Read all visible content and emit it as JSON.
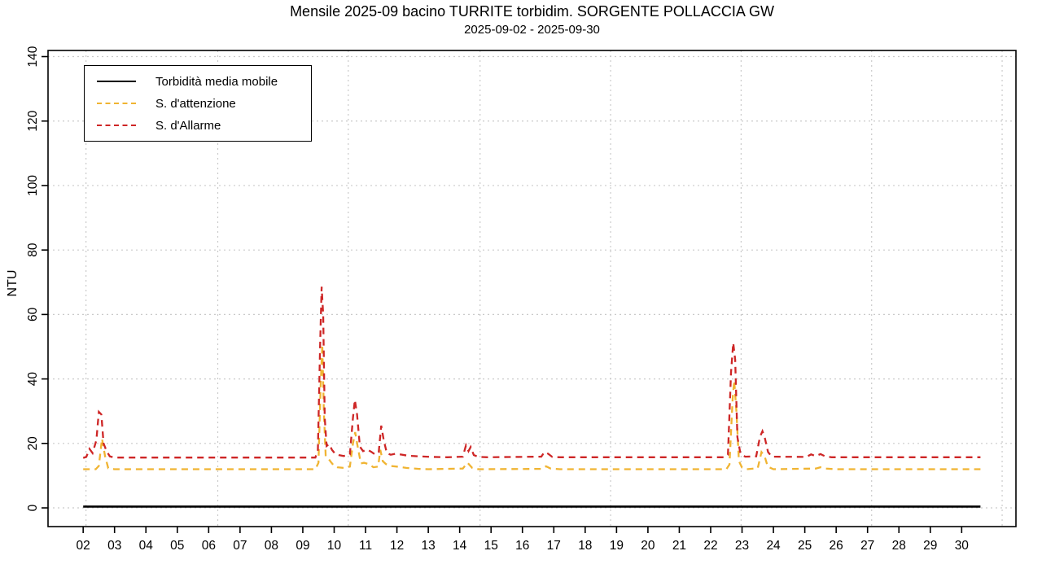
{
  "title": "Mensile 2025-09 bacino TURRITE torbidim. SORGENTE POLLACCIA GW",
  "subtitle": "2025-09-02 - 2025-09-30",
  "ylabel": "NTU",
  "colors": {
    "media_mobile": "#000000",
    "attenzione": "#F0B432",
    "allarme": "#CE2626",
    "grid": "#CACACA",
    "axis": "#000000"
  },
  "legend": {
    "items": [
      {
        "label": "Torbidità media mobile",
        "style": "solid",
        "color": "#000000"
      },
      {
        "label": "S. d'attenzione",
        "style": "dashed",
        "color": "#F0B432"
      },
      {
        "label": "S. d'Allarme",
        "style": "dashed",
        "color": "#CE2626"
      }
    ]
  },
  "chart_data": {
    "type": "line",
    "title": "Mensile 2025-09 bacino TURRITE torbidim. SORGENTE POLLACCIA GW",
    "subtitle": "2025-09-02 - 2025-09-30",
    "xlabel": "",
    "ylabel": "NTU",
    "x_unit": "day of September 2025",
    "xlim": [
      0.88,
      31.73
    ],
    "ylim": [
      -5.8,
      141.9
    ],
    "y_ticks": [
      0,
      20,
      40,
      60,
      80,
      100,
      120,
      140
    ],
    "x_tick_days": [
      2,
      3,
      4,
      5,
      6,
      7,
      8,
      9,
      10,
      11,
      12,
      13,
      14,
      15,
      16,
      17,
      18,
      19,
      20,
      21,
      22,
      23,
      24,
      25,
      26,
      27,
      28,
      29,
      30
    ],
    "x_ticks": [
      "02",
      "03",
      "04",
      "05",
      "06",
      "07",
      "08",
      "09",
      "10",
      "11",
      "12",
      "13",
      "14",
      "15",
      "16",
      "17",
      "18",
      "19",
      "20",
      "21",
      "22",
      "23",
      "24",
      "25",
      "26",
      "27",
      "28",
      "29",
      "30"
    ],
    "grid": {
      "on": true,
      "h_at": [
        0,
        20,
        40,
        60,
        80,
        100,
        120,
        140
      ],
      "v_at_days": [
        2.09,
        6.29,
        10.45,
        14.65,
        18.81,
        22.97,
        27.13,
        31.29
      ]
    },
    "legend_position": "top-left",
    "series": [
      {
        "name": "Torbidità media mobile",
        "color": "#000000",
        "style": "solid",
        "width": 2.6,
        "points": [
          [
            2.0,
            0.4
          ],
          [
            30.6,
            0.4
          ]
        ]
      },
      {
        "name": "S. d'attenzione",
        "color": "#F0B432",
        "style": "dashed",
        "width": 2.3,
        "points": [
          [
            2.0,
            12
          ],
          [
            2.4,
            12
          ],
          [
            2.5,
            13
          ],
          [
            2.6,
            21.5
          ],
          [
            2.7,
            16
          ],
          [
            2.8,
            12.3
          ],
          [
            3.0,
            12
          ],
          [
            9.4,
            12
          ],
          [
            9.5,
            14
          ],
          [
            9.57,
            38
          ],
          [
            9.62,
            50.7
          ],
          [
            9.67,
            30
          ],
          [
            9.73,
            16
          ],
          [
            9.8,
            15.5
          ],
          [
            9.9,
            14.2
          ],
          [
            10.0,
            13
          ],
          [
            10.1,
            12.6
          ],
          [
            10.3,
            12.4
          ],
          [
            10.5,
            12.8
          ],
          [
            10.6,
            20
          ],
          [
            10.67,
            23.5
          ],
          [
            10.75,
            19
          ],
          [
            10.85,
            13.8
          ],
          [
            10.95,
            14
          ],
          [
            11.1,
            13.6
          ],
          [
            11.25,
            12.6
          ],
          [
            11.4,
            12.8
          ],
          [
            11.47,
            18
          ],
          [
            11.55,
            14.5
          ],
          [
            11.65,
            13.6
          ],
          [
            11.8,
            13
          ],
          [
            12.0,
            12.8
          ],
          [
            12.3,
            12.4
          ],
          [
            12.7,
            12.1
          ],
          [
            13.0,
            12
          ],
          [
            14.1,
            12.2
          ],
          [
            14.25,
            14
          ],
          [
            14.4,
            12.4
          ],
          [
            14.6,
            12
          ],
          [
            16.6,
            12.1
          ],
          [
            16.75,
            12.9
          ],
          [
            16.9,
            12.2
          ],
          [
            17.2,
            12
          ],
          [
            22.5,
            12
          ],
          [
            22.6,
            13.5
          ],
          [
            22.7,
            34
          ],
          [
            22.75,
            39.5
          ],
          [
            22.82,
            30
          ],
          [
            22.9,
            14.5
          ],
          [
            23.0,
            12.5
          ],
          [
            23.15,
            12
          ],
          [
            23.5,
            12.3
          ],
          [
            23.62,
            17.3
          ],
          [
            23.72,
            16
          ],
          [
            23.82,
            12.8
          ],
          [
            24.0,
            12
          ],
          [
            25.35,
            12.2
          ],
          [
            25.5,
            12.6
          ],
          [
            25.65,
            12.2
          ],
          [
            26.0,
            12
          ],
          [
            30.6,
            12
          ]
        ]
      },
      {
        "name": "S. d'Allarme",
        "color": "#CE2626",
        "style": "dashed",
        "width": 2.3,
        "points": [
          [
            2.0,
            15.5
          ],
          [
            2.1,
            15.8
          ],
          [
            2.2,
            18.3
          ],
          [
            2.3,
            17
          ],
          [
            2.42,
            21
          ],
          [
            2.5,
            29.8
          ],
          [
            2.58,
            29
          ],
          [
            2.65,
            20
          ],
          [
            2.75,
            17.5
          ],
          [
            2.85,
            16
          ],
          [
            3.0,
            15.6
          ],
          [
            9.4,
            15.6
          ],
          [
            9.48,
            18
          ],
          [
            9.55,
            50
          ],
          [
            9.6,
            68.6
          ],
          [
            9.65,
            60
          ],
          [
            9.7,
            28
          ],
          [
            9.76,
            19.2
          ],
          [
            9.84,
            19.8
          ],
          [
            9.93,
            18
          ],
          [
            10.03,
            16.8
          ],
          [
            10.15,
            16.4
          ],
          [
            10.3,
            16.1
          ],
          [
            10.5,
            16.6
          ],
          [
            10.6,
            28
          ],
          [
            10.66,
            33.5
          ],
          [
            10.73,
            29
          ],
          [
            10.82,
            19
          ],
          [
            10.92,
            17.6
          ],
          [
            11.05,
            18.1
          ],
          [
            11.18,
            17.4
          ],
          [
            11.3,
            16.6
          ],
          [
            11.42,
            17.2
          ],
          [
            11.5,
            25.5
          ],
          [
            11.58,
            21
          ],
          [
            11.68,
            17
          ],
          [
            11.8,
            16.5
          ],
          [
            11.95,
            16.8
          ],
          [
            12.1,
            16.6
          ],
          [
            12.35,
            16.2
          ],
          [
            12.7,
            16
          ],
          [
            13.1,
            15.8
          ],
          [
            13.6,
            15.7
          ],
          [
            14.1,
            15.9
          ],
          [
            14.2,
            19.4
          ],
          [
            14.28,
            17.6
          ],
          [
            14.35,
            18.9
          ],
          [
            14.45,
            16.4
          ],
          [
            14.6,
            15.8
          ],
          [
            14.9,
            15.7
          ],
          [
            16.6,
            15.9
          ],
          [
            16.7,
            17.3
          ],
          [
            16.82,
            16.8
          ],
          [
            16.95,
            15.8
          ],
          [
            17.2,
            15.7
          ],
          [
            22.45,
            15.7
          ],
          [
            22.55,
            16.5
          ],
          [
            22.65,
            42
          ],
          [
            22.72,
            51.2
          ],
          [
            22.78,
            46
          ],
          [
            22.85,
            22
          ],
          [
            22.95,
            16.8
          ],
          [
            23.1,
            15.9
          ],
          [
            23.45,
            16
          ],
          [
            23.57,
            22
          ],
          [
            23.65,
            23.8
          ],
          [
            23.73,
            21.5
          ],
          [
            23.83,
            17.3
          ],
          [
            23.95,
            15.9
          ],
          [
            25.05,
            15.8
          ],
          [
            25.2,
            16.6
          ],
          [
            25.35,
            16.1
          ],
          [
            25.5,
            16.7
          ],
          [
            25.65,
            16
          ],
          [
            25.85,
            15.7
          ],
          [
            30.6,
            15.7
          ]
        ]
      }
    ]
  }
}
